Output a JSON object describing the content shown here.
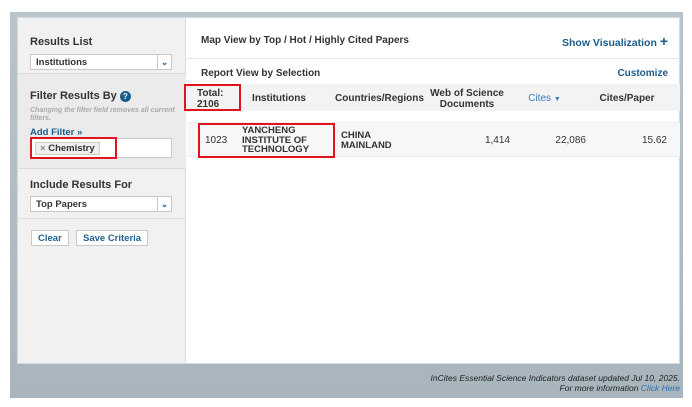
{
  "sidebar": {
    "results_list": {
      "label": "Results List",
      "value": "Institutions"
    },
    "filter": {
      "label": "Filter Results By",
      "help_icon": "question-circle-icon",
      "note": "Changing the filter field removes all current filters.",
      "add_filter": "Add Filter »",
      "tag": "Chemistry",
      "tag_remove": "×"
    },
    "include": {
      "label": "Include Results For",
      "value": "Top Papers"
    },
    "clear": "Clear",
    "save": "Save Criteria"
  },
  "main": {
    "map_title": "Map View by Top / Hot / Highly Cited Papers",
    "show_viz": "Show Visualization",
    "report_title": "Report View by Selection",
    "customize": "Customize",
    "columns": {
      "total_label": "Total:",
      "total": "2106",
      "institutions": "Institutions",
      "countries": "Countries/Regions",
      "wos_docs": "Web of Science Documents",
      "cites": "Cites",
      "cites_sort_icon": "caret-down-icon",
      "cites_per_paper": "Cites/Paper"
    },
    "rows": [
      {
        "rank": "1023",
        "institution": "YANCHENG INSTITUTE OF TECHNOLOGY",
        "country": "CHINA MAINLAND",
        "docs": "1,414",
        "cites": "22,086",
        "cpp": "15.62"
      }
    ]
  },
  "footer": {
    "line1": "InCites Essential Science Indicators dataset updated Jul 10, 2025.",
    "line2": "For more information",
    "click_here": "Click Here"
  },
  "colors": {
    "link": "#1a5d8c",
    "highlight": "#e0141e"
  }
}
